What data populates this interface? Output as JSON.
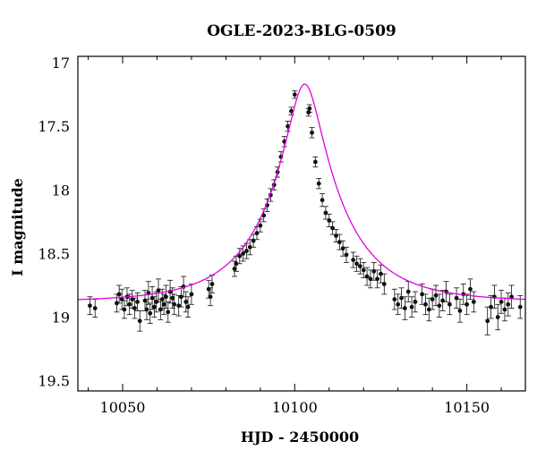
{
  "chart_data": {
    "type": "scatter",
    "title": "OGLE-2023-BLG-0509",
    "xlabel": "HJD - 2450000",
    "ylabel": "I magnitude",
    "xlim": [
      10037,
      10167
    ],
    "ylim": [
      19.58,
      16.95
    ],
    "y_inverted": true,
    "x_ticks": [
      10050,
      10100,
      10150
    ],
    "y_ticks": [
      17,
      17.5,
      18,
      18.5,
      19,
      19.5
    ],
    "x_tick_labels": [
      "10050",
      "10100",
      "10150"
    ],
    "y_tick_labels": [
      "17",
      "17.5",
      "18",
      "18.5",
      "19",
      "19.5"
    ],
    "grid": false,
    "colors": {
      "data": "#111111",
      "model": "#e000e0",
      "axes": "#000000"
    },
    "series": [
      {
        "type": "scatter_errorbar",
        "x": [
          10040.5,
          10042.0,
          10048.3,
          10049.0,
          10049.8,
          10050.5,
          10051.3,
          10052.0,
          10052.8,
          10053.5,
          10054.3,
          10055.0,
          10056.5,
          10057.0,
          10057.5,
          10058.0,
          10058.6,
          10059.2,
          10059.8,
          10060.4,
          10061.0,
          10061.5,
          10062.0,
          10062.6,
          10063.2,
          10063.8,
          10064.5,
          10065.0,
          10066.3,
          10067.0,
          10067.7,
          10068.4,
          10069.0,
          10070.0,
          10075.0,
          10075.5,
          10076.0,
          10082.5,
          10083.0,
          10084.0,
          10085.0,
          10086.0,
          10087.0,
          10088.0,
          10089.0,
          10090.0,
          10091.0,
          10092.0,
          10093.0,
          10094.0,
          10095.0,
          10096.0,
          10097.0,
          10098.0,
          10099.0,
          10100.0,
          10104.0,
          10104.3,
          10105.0,
          10106.0,
          10107.0,
          10108.0,
          10109.0,
          10110.0,
          10111.0,
          10112.0,
          10113.0,
          10114.0,
          10115.0,
          10117.0,
          10118.0,
          10119.0,
          10120.0,
          10121.0,
          10122.0,
          10123.0,
          10124.0,
          10125.0,
          10126.0,
          10129.0,
          10130.0,
          10131.0,
          10132.0,
          10133.0,
          10134.0,
          10135.0,
          10137.0,
          10138.0,
          10139.0,
          10140.0,
          10141.0,
          10142.0,
          10143.0,
          10144.0,
          10145.0,
          10147.0,
          10148.0,
          10149.0,
          10150.0,
          10151.0,
          10152.0,
          10156.0,
          10157.0,
          10158.0,
          10159.0,
          10160.0,
          10161.0,
          10162.0,
          10163.0,
          10165.5
        ],
        "y": [
          18.91,
          18.93,
          18.89,
          18.82,
          18.86,
          18.94,
          18.84,
          18.9,
          18.86,
          18.93,
          18.88,
          19.03,
          18.87,
          18.94,
          18.81,
          18.97,
          18.85,
          18.92,
          18.88,
          18.79,
          18.94,
          18.86,
          18.9,
          18.84,
          18.96,
          18.8,
          18.85,
          18.9,
          18.91,
          18.84,
          18.76,
          18.88,
          18.92,
          18.82,
          18.78,
          18.84,
          18.74,
          18.62,
          18.58,
          18.52,
          18.5,
          18.48,
          18.45,
          18.4,
          18.34,
          18.28,
          18.2,
          18.12,
          18.04,
          17.96,
          17.86,
          17.74,
          17.62,
          17.5,
          17.38,
          17.25,
          17.39,
          17.36,
          17.55,
          17.78,
          17.95,
          18.08,
          18.18,
          18.24,
          18.3,
          18.36,
          18.41,
          18.46,
          18.51,
          18.55,
          18.58,
          18.6,
          18.63,
          18.68,
          18.7,
          18.64,
          18.7,
          18.66,
          18.74,
          18.86,
          18.9,
          18.85,
          18.93,
          18.8,
          18.92,
          18.88,
          18.82,
          18.9,
          18.94,
          18.86,
          18.83,
          18.91,
          18.87,
          18.8,
          18.9,
          18.85,
          18.95,
          18.82,
          18.9,
          18.78,
          18.88,
          19.03,
          18.92,
          18.84,
          19.0,
          18.88,
          18.94,
          18.9,
          18.84,
          18.92
        ],
        "error": [
          0.07,
          0.07,
          0.07,
          0.07,
          0.08,
          0.07,
          0.07,
          0.08,
          0.07,
          0.08,
          0.07,
          0.08,
          0.08,
          0.08,
          0.09,
          0.08,
          0.09,
          0.08,
          0.08,
          0.09,
          0.08,
          0.08,
          0.08,
          0.09,
          0.08,
          0.09,
          0.08,
          0.08,
          0.08,
          0.08,
          0.08,
          0.08,
          0.08,
          0.08,
          0.07,
          0.07,
          0.07,
          0.06,
          0.06,
          0.06,
          0.06,
          0.06,
          0.06,
          0.05,
          0.05,
          0.05,
          0.05,
          0.05,
          0.05,
          0.04,
          0.04,
          0.04,
          0.04,
          0.04,
          0.03,
          0.03,
          0.03,
          0.03,
          0.04,
          0.04,
          0.04,
          0.05,
          0.05,
          0.05,
          0.05,
          0.05,
          0.06,
          0.06,
          0.06,
          0.06,
          0.06,
          0.06,
          0.06,
          0.07,
          0.07,
          0.07,
          0.07,
          0.07,
          0.08,
          0.08,
          0.08,
          0.08,
          0.09,
          0.08,
          0.08,
          0.08,
          0.08,
          0.08,
          0.09,
          0.08,
          0.08,
          0.09,
          0.08,
          0.08,
          0.08,
          0.08,
          0.09,
          0.08,
          0.08,
          0.08,
          0.08,
          0.11,
          0.09,
          0.09,
          0.1,
          0.09,
          0.09,
          0.09,
          0.09,
          0.09
        ]
      },
      {
        "type": "line",
        "model": "pspl",
        "t0": 10102.9,
        "u0": 0.21,
        "tE": 22,
        "baseline": 18.88,
        "blending": 1.0,
        "x_range": [
          10037,
          10167
        ]
      }
    ]
  }
}
